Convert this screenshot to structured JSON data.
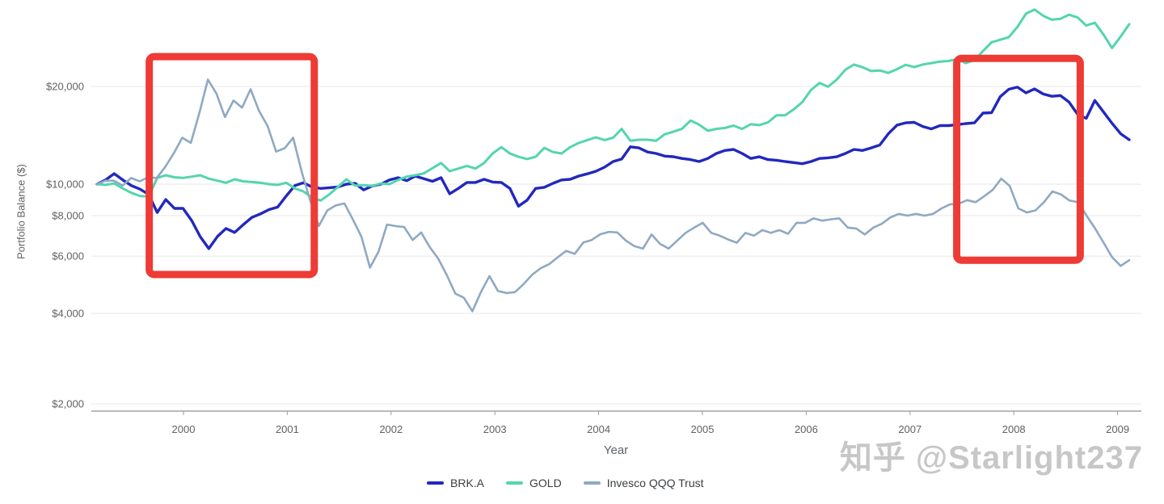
{
  "watermark": {
    "text": "知乎 @Starlight237"
  },
  "chart_data": {
    "type": "line",
    "title": "",
    "x_axis": {
      "title": "Year",
      "tick_labels": [
        "2000",
        "2001",
        "2002",
        "2003",
        "2004",
        "2005",
        "2006",
        "2007",
        "2008",
        "2009"
      ]
    },
    "y_axis": {
      "title": "Portfolio Balance ($)",
      "scale": "log",
      "tick_values": [
        20000,
        10000,
        8000,
        6000,
        4000,
        2000
      ],
      "tick_labels": [
        "$20,000",
        "$10,000",
        "$8,000",
        "$6,000",
        "$4,000",
        "$2,000"
      ],
      "range_shown": [
        2000,
        37000
      ]
    },
    "start_month": "1999-02",
    "frequency": "monthly",
    "legend_position": "bottom",
    "grid": true,
    "series": [
      {
        "name": "BRK.A",
        "color": "#2228bd",
        "values": [
          10000,
          10300,
          10770,
          10300,
          9900,
          9650,
          9300,
          8180,
          8970,
          8420,
          8420,
          7730,
          6890,
          6330,
          6900,
          7300,
          7100,
          7500,
          7900,
          8100,
          8350,
          8500,
          9200,
          9900,
          10100,
          9800,
          9700,
          9750,
          9800,
          10000,
          10060,
          9600,
          9870,
          10000,
          10300,
          10470,
          10250,
          10590,
          10400,
          10200,
          10470,
          9340,
          9700,
          10120,
          10120,
          10350,
          10150,
          10120,
          9700,
          8550,
          8930,
          9700,
          9780,
          10060,
          10300,
          10350,
          10590,
          10760,
          10960,
          11280,
          11740,
          11950,
          13030,
          12930,
          12560,
          12430,
          12200,
          12150,
          12000,
          11900,
          11740,
          12000,
          12430,
          12700,
          12790,
          12430,
          12000,
          12140,
          11900,
          11850,
          11740,
          11650,
          11560,
          11740,
          12000,
          12050,
          12140,
          12430,
          12790,
          12700,
          12930,
          13200,
          14300,
          15200,
          15450,
          15500,
          15050,
          14800,
          15150,
          15150,
          15250,
          15370,
          15450,
          16550,
          16600,
          18600,
          19600,
          19900,
          19100,
          19650,
          18950,
          18650,
          18750,
          17900,
          16400,
          15950,
          18100,
          16700,
          15400,
          14300,
          13700
        ]
      },
      {
        "name": "GOLD",
        "color": "#53d5ad",
        "values": [
          10000,
          9950,
          10050,
          9700,
          9400,
          9200,
          9150,
          10450,
          10650,
          10500,
          10450,
          10550,
          10650,
          10400,
          10250,
          10100,
          10350,
          10200,
          10150,
          10100,
          10000,
          9950,
          10100,
          9700,
          9500,
          9100,
          8900,
          9300,
          9800,
          10350,
          9900,
          9930,
          9870,
          10050,
          10000,
          10300,
          10550,
          10650,
          10800,
          11200,
          11620,
          10960,
          11170,
          11380,
          11170,
          11620,
          12430,
          13000,
          12430,
          12140,
          11950,
          12140,
          12930,
          12560,
          12430,
          13000,
          13390,
          13670,
          13940,
          13670,
          13900,
          14800,
          13600,
          13700,
          13700,
          13600,
          14250,
          14500,
          14800,
          15700,
          15250,
          14600,
          14800,
          14900,
          15150,
          14800,
          15300,
          15200,
          15500,
          16300,
          16300,
          17000,
          17900,
          19500,
          20500,
          19950,
          21000,
          22500,
          23350,
          22900,
          22300,
          22400,
          22000,
          22600,
          23300,
          22950,
          23350,
          23600,
          23850,
          23950,
          24250,
          23600,
          24100,
          25700,
          27350,
          27850,
          28350,
          30500,
          33500,
          34500,
          33000,
          32100,
          32300,
          33250,
          32600,
          30800,
          31400,
          28900,
          26250,
          28500,
          31100
        ]
      },
      {
        "name": "Invesco QQQ Trust",
        "color": "#8fa9c2",
        "values": [
          10000,
          10250,
          10250,
          9900,
          10450,
          10200,
          10500,
          10450,
          11300,
          12450,
          13900,
          13400,
          16550,
          21000,
          19000,
          16100,
          18100,
          17200,
          19600,
          16800,
          15100,
          12600,
          12900,
          13900,
          10900,
          8900,
          7430,
          8300,
          8600,
          8720,
          7780,
          6880,
          5530,
          6200,
          7510,
          7430,
          7380,
          6730,
          7100,
          6400,
          5900,
          5250,
          4600,
          4470,
          4060,
          4650,
          5210,
          4690,
          4620,
          4650,
          4920,
          5260,
          5510,
          5670,
          5950,
          6230,
          6100,
          6610,
          6730,
          7010,
          7130,
          7100,
          6700,
          6440,
          6330,
          7000,
          6550,
          6330,
          6700,
          7080,
          7350,
          7600,
          7080,
          6940,
          6750,
          6600,
          7080,
          6940,
          7220,
          7080,
          7220,
          7030,
          7600,
          7600,
          7850,
          7720,
          7790,
          7850,
          7350,
          7300,
          7000,
          7350,
          7550,
          7900,
          8100,
          8000,
          8100,
          8000,
          8100,
          8420,
          8670,
          8700,
          8930,
          8800,
          9180,
          9600,
          10400,
          9870,
          8420,
          8180,
          8300,
          8800,
          9500,
          9300,
          8900,
          8800,
          8000,
          7300,
          6600,
          5950,
          5600,
          5830
        ]
      }
    ],
    "annotations": {
      "color": "#ee3b35",
      "highlight_boxes": [
        {
          "x_start_year": 1999.67,
          "x_end_year": 2001.26,
          "y_top_value": 24700,
          "y_bottom_value": 5270
        },
        {
          "x_start_year": 2007.45,
          "x_end_year": 2008.64,
          "y_top_value": 24400,
          "y_bottom_value": 5830
        }
      ]
    }
  }
}
